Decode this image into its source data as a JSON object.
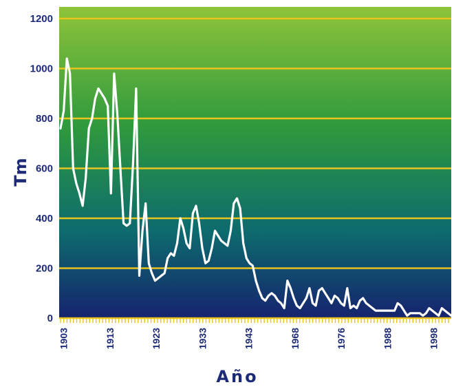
{
  "chart_data": {
    "type": "line",
    "title": "",
    "xlabel": "Año",
    "ylabel": "Tm",
    "ylim": [
      0,
      1250
    ],
    "yticks": [
      "0",
      "200",
      "400",
      "600",
      "800",
      "1000",
      "1200"
    ],
    "xtick_labels": [
      "1903",
      "1913",
      "1923",
      "1933",
      "1943",
      "1968",
      "1976",
      "1988",
      "1998"
    ],
    "grid": true,
    "legend": "none",
    "colors": {
      "background_top": "#8fc43b",
      "background_mid": "#2f9a3c",
      "background_teal": "#0d6b6e",
      "background_bottom": "#16236e",
      "gridline": "#e8c41c",
      "line": "#ffffff",
      "text": "#1c2a78"
    },
    "series": [
      {
        "values": [
          760,
          830,
          1040,
          980,
          600,
          540,
          500,
          450,
          560,
          760,
          800,
          880,
          920,
          900,
          880,
          850,
          500,
          980,
          820,
          600,
          380,
          370,
          380,
          620,
          920,
          170,
          350,
          460,
          220,
          180,
          150,
          160,
          170,
          180,
          240,
          260,
          250,
          300,
          400,
          360,
          300,
          280,
          420,
          450,
          380,
          280,
          220,
          230,
          280,
          350,
          330,
          310,
          300,
          290,
          350,
          460,
          480,
          440,
          300,
          240,
          220,
          210,
          150,
          110,
          80,
          70,
          90,
          100,
          90,
          70,
          60,
          40,
          150,
          120,
          80,
          50,
          40,
          60,
          80,
          120,
          60,
          50,
          110,
          120,
          100,
          80,
          60,
          90,
          80,
          60,
          50,
          120,
          40,
          50,
          40,
          70,
          80,
          60,
          50,
          40,
          30,
          30,
          30,
          30,
          30,
          30,
          30,
          60,
          50,
          30,
          10,
          20,
          20,
          20,
          20,
          10,
          20,
          40,
          30,
          20,
          10,
          40,
          30,
          20,
          10
        ]
      }
    ]
  }
}
